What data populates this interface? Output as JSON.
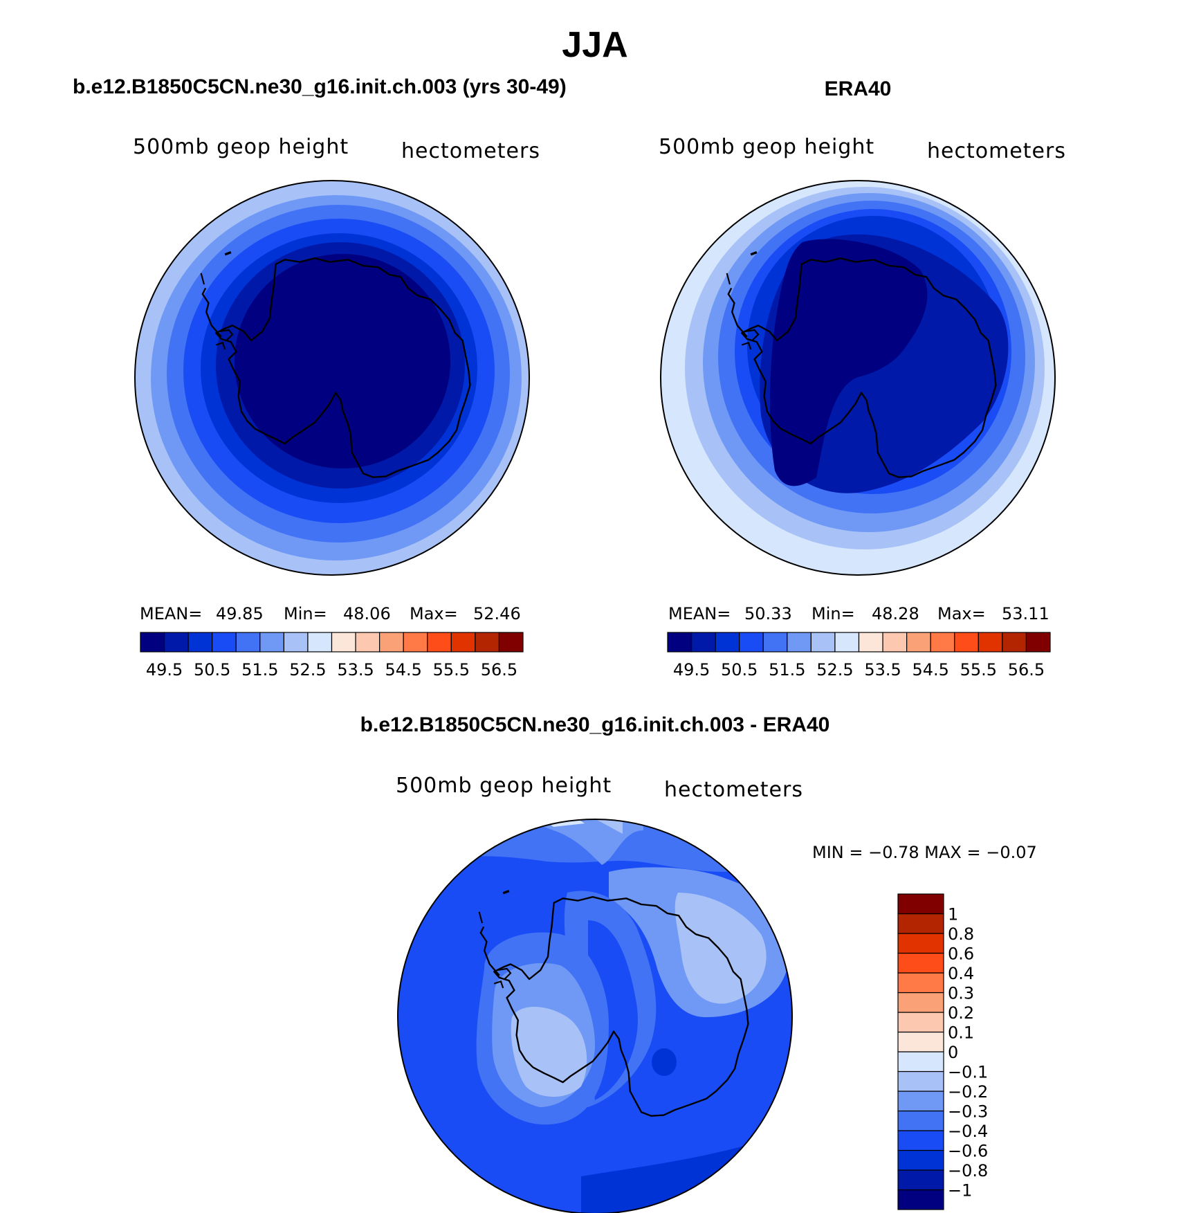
{
  "figure_title": "JJA",
  "panels": {
    "model": {
      "title": "b.e12.B1850C5CN.ne30_g16.init.ch.003 (yrs 30-49)",
      "left_label": "500mb geop height",
      "right_label": "hectometers",
      "stats": {
        "mean_label": "MEAN=",
        "mean": "49.85",
        "min_label": "Min=",
        "min": "48.06",
        "max_label": "Max=",
        "max": "52.46"
      }
    },
    "obs": {
      "title": "ERA40",
      "left_label": "500mb geop height",
      "right_label": "hectometers",
      "stats": {
        "mean_label": "MEAN=",
        "mean": "50.33",
        "min_label": "Min=",
        "min": "48.28",
        "max_label": "Max=",
        "max": "53.11"
      }
    },
    "diff": {
      "title": "b.e12.B1850C5CN.ne30_g16.init.ch.003 - ERA40",
      "left_label": "500mb geop height",
      "right_label": "hectometers",
      "minmax": "MIN =   −0.78 MAX =   −0.07"
    }
  },
  "colorbar_horizontal": {
    "colors": [
      "#000080",
      "#0019A8",
      "#0033D6",
      "#1A4CF5",
      "#4273F5",
      "#7099F5",
      "#A8C2F7",
      "#D6E6FC",
      "#FCE6D9",
      "#FCC8B0",
      "#FAA178",
      "#FF7A47",
      "#FF4D1A",
      "#E03300",
      "#B32400",
      "#800000"
    ],
    "tick_labels": [
      "49.5",
      "50.5",
      "51.5",
      "52.5",
      "53.5",
      "54.5",
      "55.5",
      "56.5"
    ]
  },
  "colorbar_vertical": {
    "colors": [
      "#000080",
      "#0019A8",
      "#0033D6",
      "#1A4CF5",
      "#4273F5",
      "#7099F5",
      "#A8C2F7",
      "#D6E6FC",
      "#FCE6D9",
      "#FCC8B0",
      "#FAA178",
      "#FF7A47",
      "#FF4D1A",
      "#E03300",
      "#B32400",
      "#800000"
    ],
    "tick_labels": [
      "−1",
      "−0.8",
      "−0.6",
      "−0.4",
      "−0.3",
      "−0.2",
      "−0.1",
      "0",
      "0.1",
      "0.2",
      "0.3",
      "0.4",
      "0.6",
      "0.8",
      "1"
    ]
  },
  "chart_data": [
    {
      "type": "heatmap",
      "title": "b.e12.B1850C5CN.ne30_g16.init.ch.003 (yrs 30-49)",
      "variable": "500mb geop height",
      "units": "hectometers",
      "projection": "south polar stereographic",
      "mean": 49.85,
      "min": 48.06,
      "max": 52.46,
      "contour_levels": [
        49.5,
        50,
        50.5,
        51,
        51.5,
        52,
        52.5,
        53,
        53.5,
        54,
        54.5,
        55,
        55.5,
        56,
        56.5
      ]
    },
    {
      "type": "heatmap",
      "title": "ERA40",
      "variable": "500mb geop height",
      "units": "hectometers",
      "projection": "south polar stereographic",
      "mean": 50.33,
      "min": 48.28,
      "max": 53.11,
      "contour_levels": [
        49.5,
        50,
        50.5,
        51,
        51.5,
        52,
        52.5,
        53,
        53.5,
        54,
        54.5,
        55,
        55.5,
        56,
        56.5
      ]
    },
    {
      "type": "heatmap",
      "title": "b.e12.B1850C5CN.ne30_g16.init.ch.003 - ERA40",
      "variable": "500mb geop height",
      "units": "hectometers",
      "projection": "south polar stereographic",
      "min": -0.78,
      "max": -0.07,
      "contour_levels": [
        -1,
        -0.8,
        -0.6,
        -0.4,
        -0.3,
        -0.2,
        -0.1,
        0,
        0.1,
        0.2,
        0.3,
        0.4,
        0.6,
        0.8,
        1
      ]
    }
  ]
}
